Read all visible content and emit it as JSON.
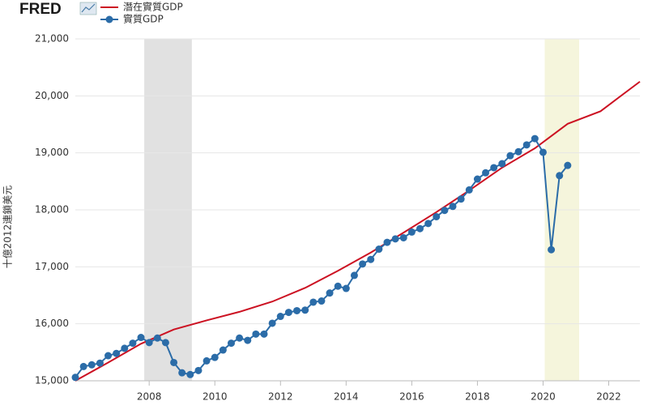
{
  "chart_data": {
    "type": "line",
    "logo": "FRED",
    "y_label": "十億2012連鎖美元",
    "xlim": [
      2005.75,
      2022.95
    ],
    "xticks": [
      2008,
      2010,
      2012,
      2014,
      2016,
      2018,
      2020,
      2022
    ],
    "ylim": [
      15000,
      21000
    ],
    "yticks": [
      {
        "value": 15000,
        "label": "15,000"
      },
      {
        "value": 16000,
        "label": "16,000"
      },
      {
        "value": 17000,
        "label": "17,000"
      },
      {
        "value": 18000,
        "label": "18,000"
      },
      {
        "value": 19000,
        "label": "19,000"
      },
      {
        "value": 20000,
        "label": "20,000"
      },
      {
        "value": 21000,
        "label": "21,000"
      }
    ],
    "grid": true,
    "recessions": [
      {
        "x": [
          2007.85,
          2009.3
        ],
        "color": "#e1e1e1"
      },
      {
        "x": [
          2020.05,
          2021.1
        ],
        "color": "#f5f5dc"
      }
    ],
    "series": [
      {
        "name": "潛在實質GDP",
        "color": "#cc1122",
        "markers": false,
        "x": [
          2005.75,
          2006.75,
          2007.75,
          2008.75,
          2009.75,
          2010.75,
          2011.75,
          2012.75,
          2013.75,
          2014.75,
          2015.75,
          2016.75,
          2017.75,
          2018.75,
          2019.75,
          2020.75,
          2021.75,
          2022.95
        ],
        "values": [
          15000,
          15320,
          15650,
          15900,
          16060,
          16210,
          16390,
          16630,
          16930,
          17250,
          17600,
          17960,
          18340,
          18740,
          19080,
          19510,
          19730,
          20250
        ]
      },
      {
        "name": "實質GDP",
        "color": "#2b6ca8",
        "markers": true,
        "x": [
          2005.75,
          2006,
          2006.25,
          2006.5,
          2006.75,
          2007,
          2007.25,
          2007.5,
          2007.75,
          2008,
          2008.25,
          2008.5,
          2008.75,
          2009,
          2009.25,
          2009.5,
          2009.75,
          2010,
          2010.25,
          2010.5,
          2010.75,
          2011,
          2011.25,
          2011.5,
          2011.75,
          2012,
          2012.25,
          2012.5,
          2012.75,
          2013,
          2013.25,
          2013.5,
          2013.75,
          2014,
          2014.25,
          2014.5,
          2014.75,
          2015,
          2015.25,
          2015.5,
          2015.75,
          2016,
          2016.25,
          2016.5,
          2016.75,
          2017,
          2017.25,
          2017.5,
          2017.75,
          2018,
          2018.25,
          2018.5,
          2018.75,
          2019,
          2019.25,
          2019.5,
          2019.75,
          2020,
          2020.25,
          2020.5,
          2020.75
        ],
        "values": [
          15060,
          15250,
          15280,
          15310,
          15440,
          15480,
          15570,
          15660,
          15760,
          15670,
          15750,
          15670,
          15320,
          15140,
          15110,
          15180,
          15350,
          15410,
          15540,
          15660,
          15750,
          15710,
          15820,
          15820,
          16010,
          16130,
          16200,
          16230,
          16240,
          16380,
          16400,
          16540,
          16660,
          16620,
          16850,
          17050,
          17130,
          17310,
          17430,
          17490,
          17510,
          17610,
          17670,
          17760,
          17880,
          17990,
          18060,
          18190,
          18350,
          18540,
          18650,
          18740,
          18810,
          18950,
          19020,
          19140,
          19250,
          19010,
          17300,
          18600,
          18780
        ]
      }
    ]
  }
}
